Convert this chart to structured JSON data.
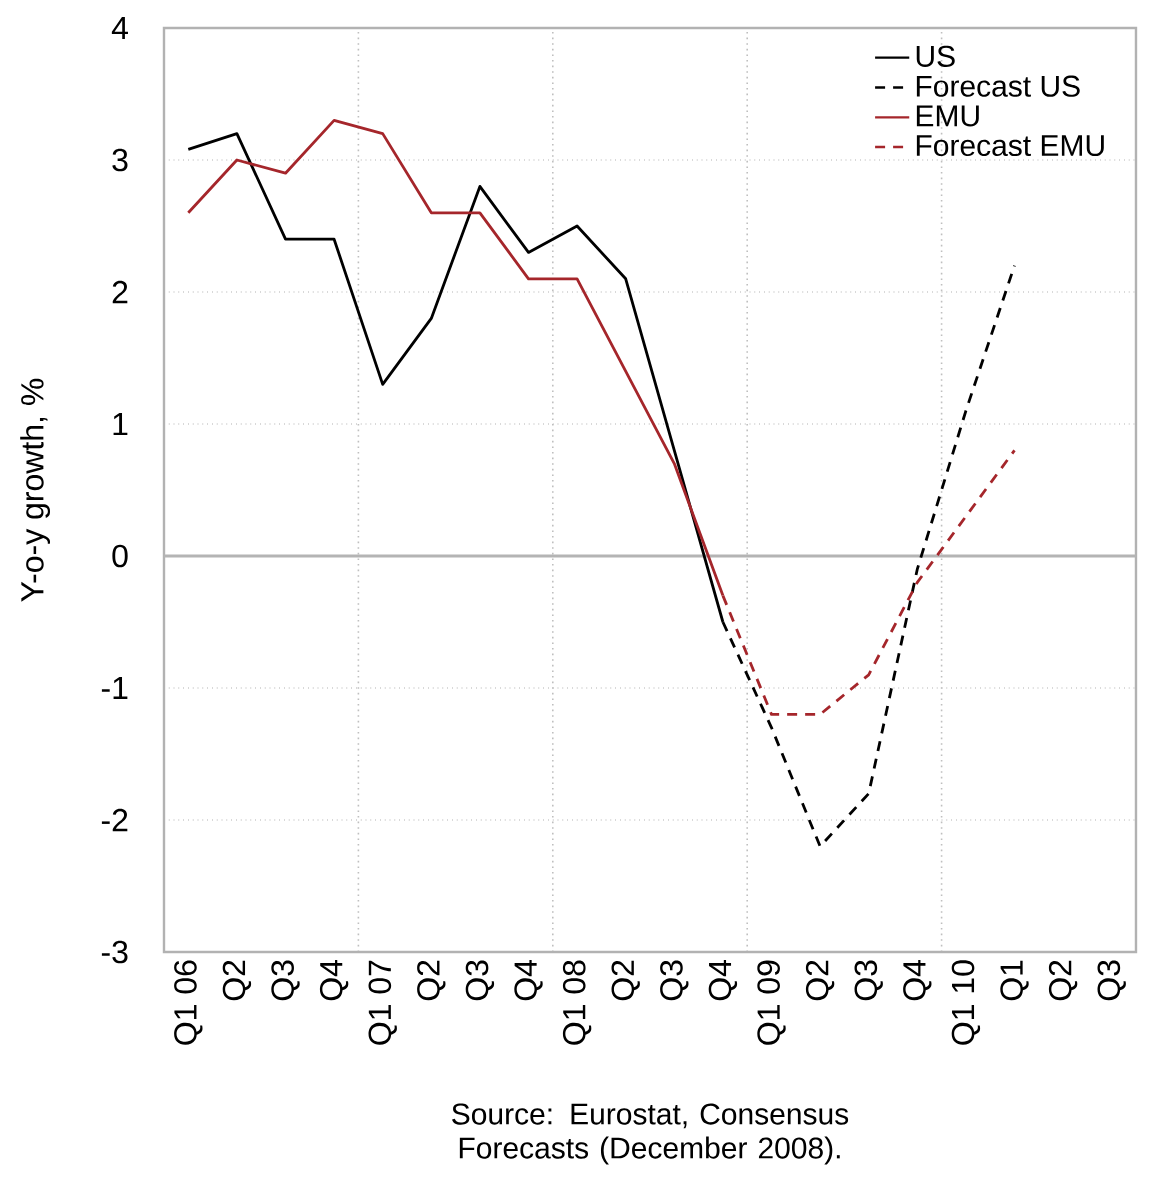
{
  "chart_data": {
    "type": "line",
    "ylabel": "Y-o-y growth, %",
    "categories": [
      "Q1 06",
      "Q2",
      "Q3",
      "Q4",
      "Q1 07",
      "Q2",
      "Q3",
      "Q4",
      "Q1 08",
      "Q2",
      "Q3",
      "Q4",
      "Q1 09",
      "Q2",
      "Q3",
      "Q4",
      "Q1 10",
      "Q1",
      "Q2",
      "Q3"
    ],
    "series": [
      {
        "name": "US",
        "color": "#000000",
        "line_style": "solid",
        "values": [
          3.08,
          3.2,
          2.4,
          2.4,
          1.3,
          1.8,
          2.8,
          2.3,
          2.5,
          2.1,
          0.8,
          -0.5,
          null,
          null,
          null,
          null,
          null,
          null,
          null,
          null
        ]
      },
      {
        "name": "Forecast US",
        "color": "#000000",
        "line_style": "dashed",
        "values": [
          null,
          null,
          null,
          null,
          null,
          null,
          null,
          null,
          null,
          null,
          null,
          -0.5,
          -1.3,
          -2.2,
          -1.8,
          -0.1,
          1.1,
          2.2,
          null,
          null
        ]
      },
      {
        "name": "EMU",
        "color": "#a5262b",
        "line_style": "solid",
        "values": [
          2.6,
          3.0,
          2.9,
          3.3,
          3.2,
          2.6,
          2.6,
          2.1,
          2.1,
          1.4,
          0.7,
          -0.3,
          null,
          null,
          null,
          null,
          null,
          null,
          null,
          null
        ]
      },
      {
        "name": "Forecast EMU",
        "color": "#a5262b",
        "line_style": "dashed",
        "values": [
          null,
          null,
          null,
          null,
          null,
          null,
          null,
          null,
          null,
          null,
          null,
          -0.3,
          -1.2,
          -1.2,
          -0.9,
          -0.2,
          0.3,
          0.8,
          null,
          null
        ]
      }
    ],
    "ylim": [
      -3,
      4
    ],
    "yticks": [
      -3,
      -2,
      -1,
      0,
      1,
      2,
      3,
      4
    ],
    "grid": true,
    "legend": "top right",
    "marker": "none",
    "ref_lines": [
      {
        "axis": "y",
        "value": 0,
        "color": "#b4b4b4"
      }
    ],
    "annotations": [
      "Source: Eurostat, Consensus Forecasts (December 2008)."
    ]
  }
}
